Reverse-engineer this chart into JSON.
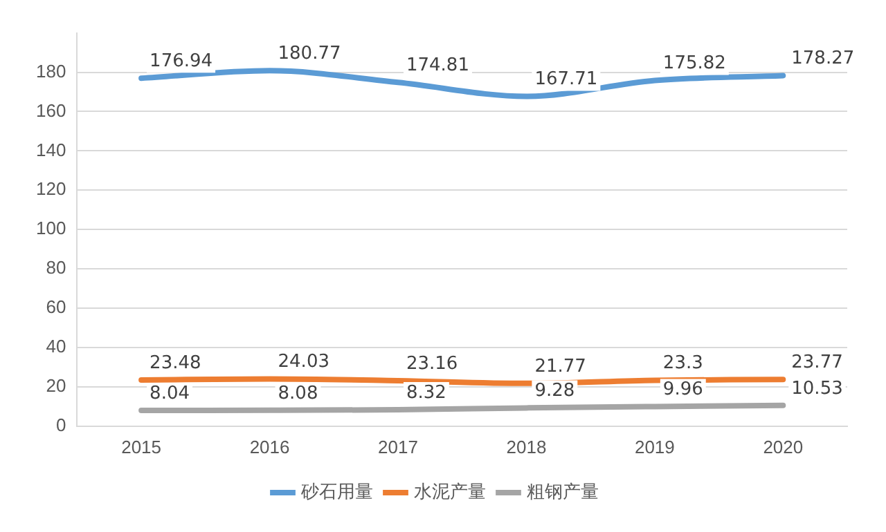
{
  "chart_data": {
    "type": "line",
    "categories": [
      "2015",
      "2016",
      "2017",
      "2018",
      "2019",
      "2020"
    ],
    "series": [
      {
        "name": "砂石用量",
        "color": "#5b9bd5",
        "values": [
          176.94,
          180.77,
          174.81,
          167.71,
          175.82,
          178.27
        ]
      },
      {
        "name": "水泥产量",
        "color": "#ed7d31",
        "values": [
          23.48,
          24.03,
          23.16,
          21.77,
          23.3,
          23.77
        ]
      },
      {
        "name": "粗钢产量",
        "color": "#a5a5a5",
        "values": [
          8.04,
          8.08,
          8.32,
          9.28,
          9.96,
          10.53
        ]
      }
    ],
    "ylim": [
      0,
      200
    ],
    "yticks": [
      0,
      20,
      40,
      60,
      80,
      100,
      120,
      140,
      160,
      180
    ],
    "grid": "y",
    "legend": "bottom",
    "marker": "none",
    "data_labels": true
  }
}
